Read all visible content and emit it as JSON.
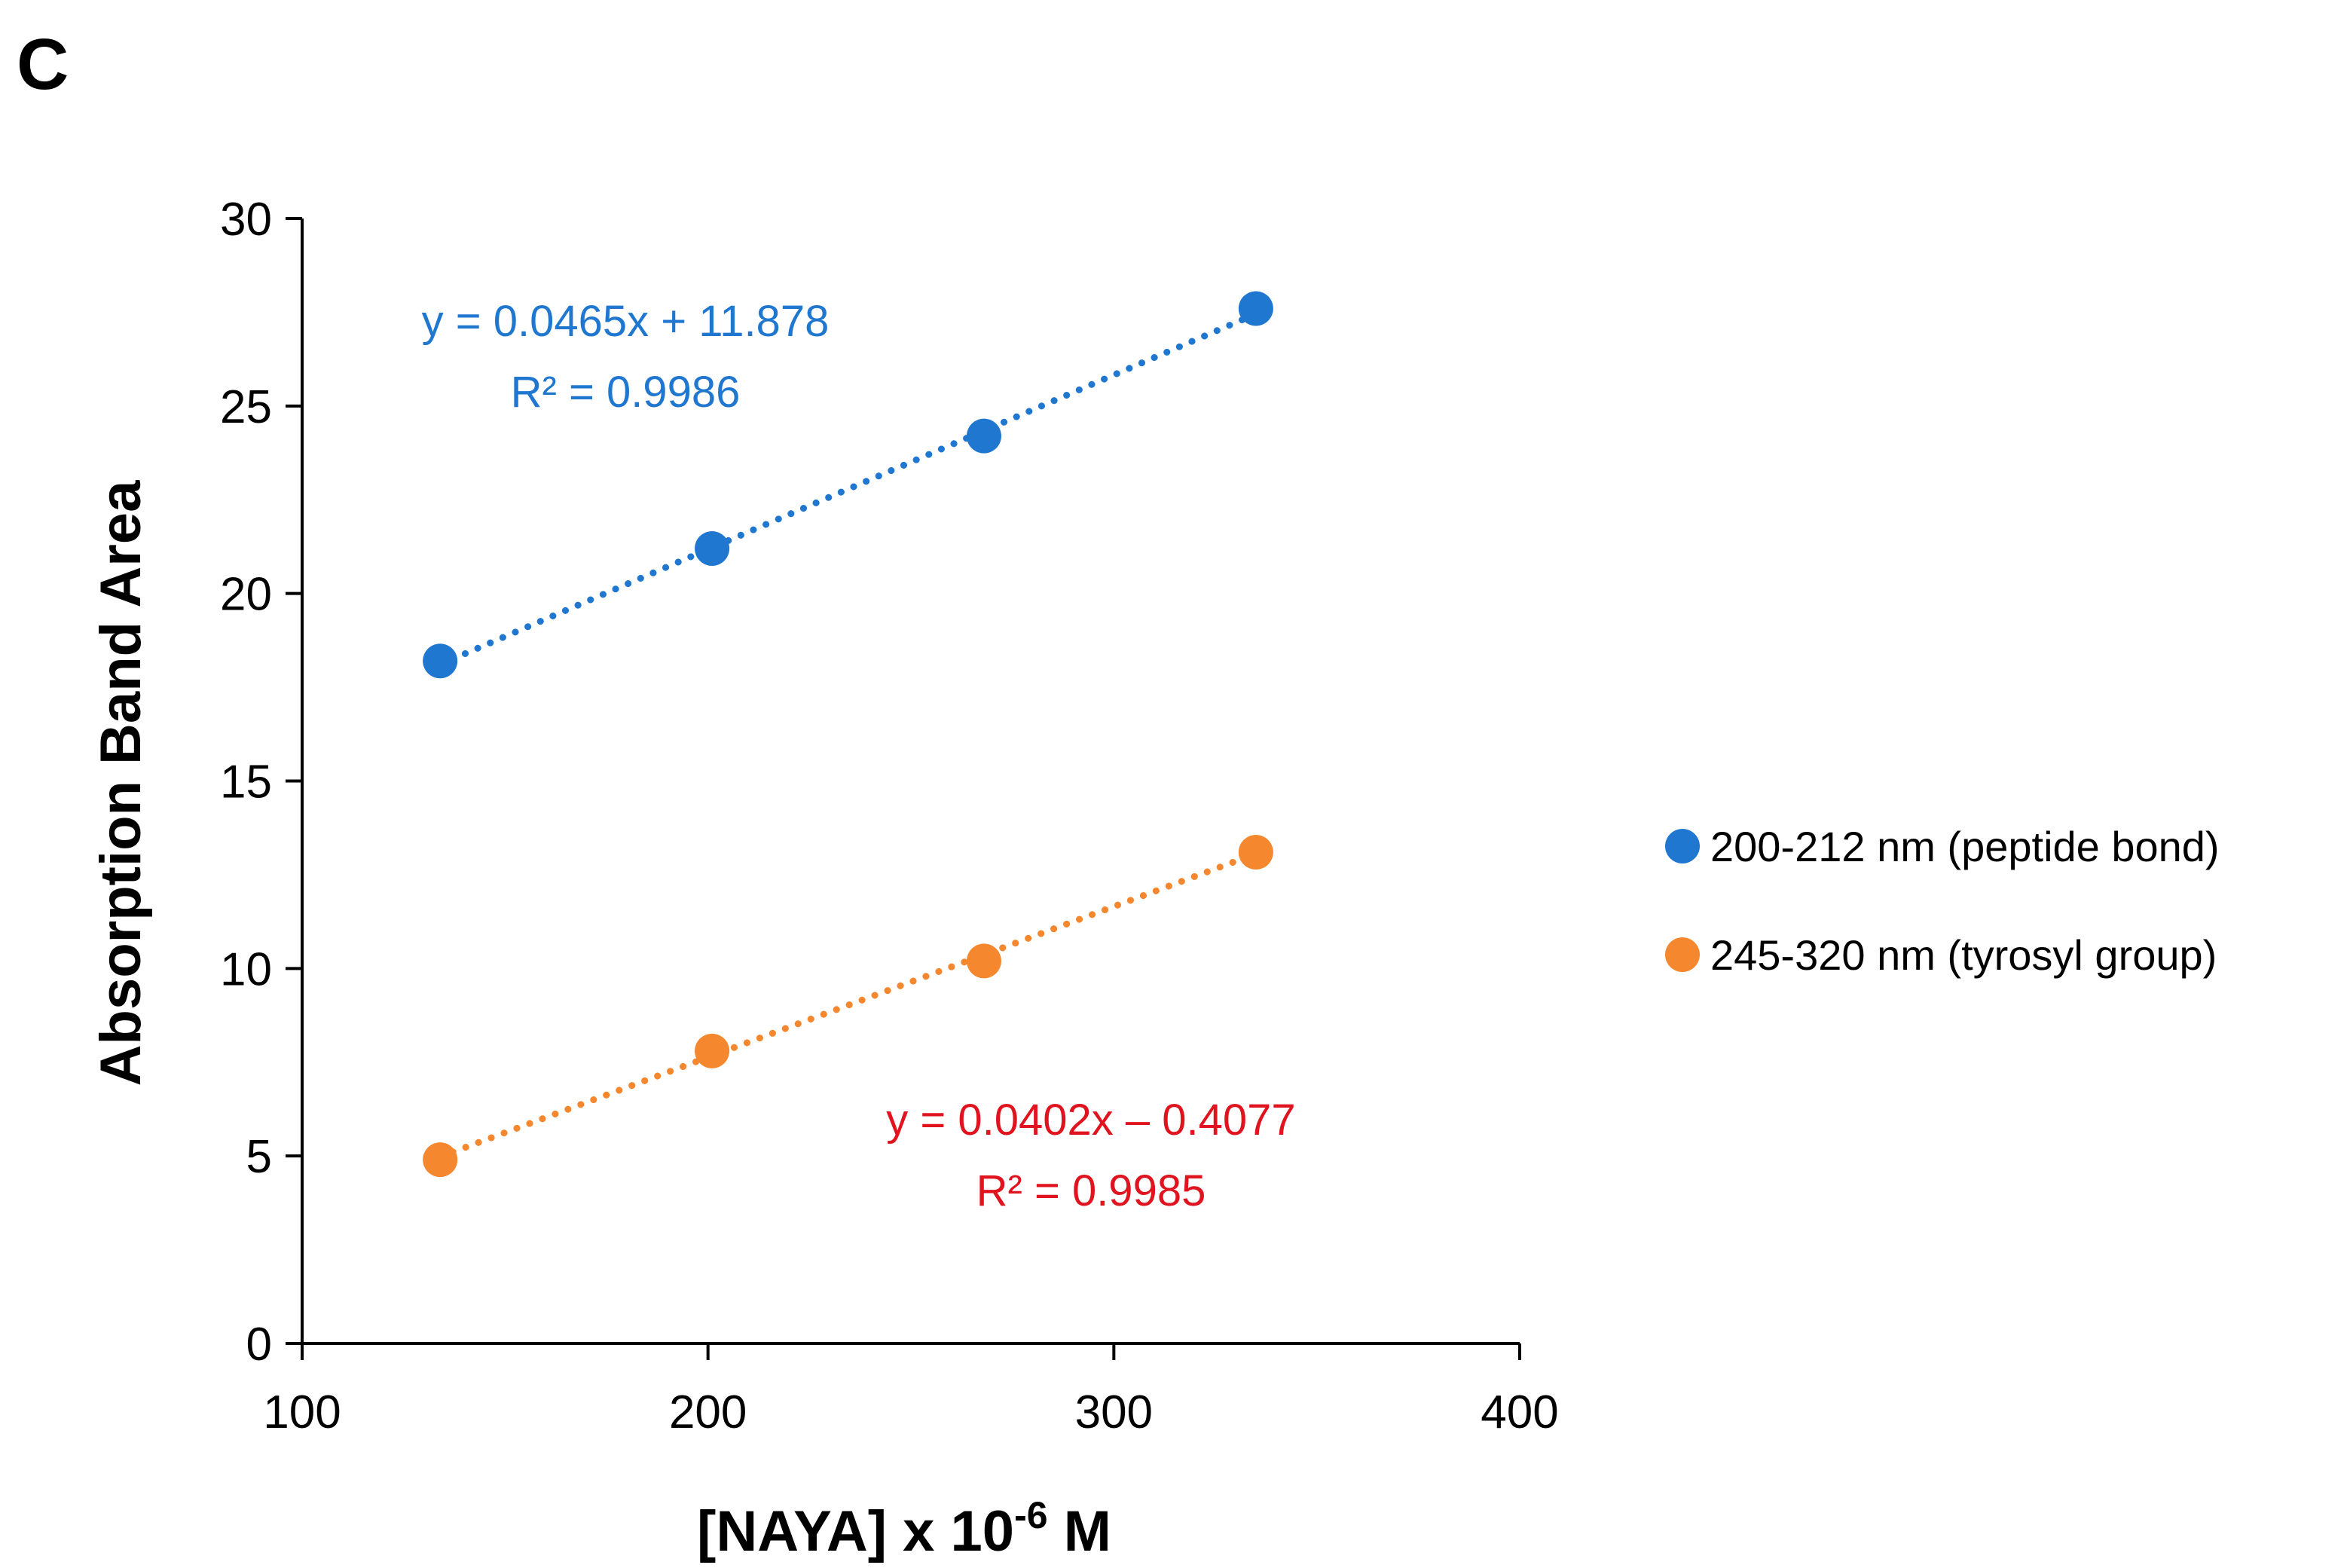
{
  "panel_label": "C",
  "chart_data": {
    "type": "scatter",
    "title": "",
    "xlabel": {
      "main": "[NAYA] x 10",
      "exponent": "-6",
      "unit": " M"
    },
    "ylabel": "Absorption Band Area",
    "xlim": [
      100,
      400
    ],
    "ylim": [
      0,
      30
    ],
    "xticks": [
      100,
      200,
      300,
      400
    ],
    "yticks": [
      0,
      5,
      10,
      15,
      20,
      25,
      30
    ],
    "grid": false,
    "legend_position": "right",
    "series": [
      {
        "name": "200-212 nm (peptide bond)",
        "color": "#1f77d0",
        "x": [
          134,
          201,
          268,
          335
        ],
        "y": [
          18.2,
          21.2,
          24.2,
          27.6
        ],
        "trendline": {
          "type": "linear",
          "slope": 0.0465,
          "intercept": 11.878,
          "style": "dotted"
        },
        "equation": "y = 0.0465x + 11.878",
        "r2": "R² = 0.9986",
        "annotation_color": "#1f77d0"
      },
      {
        "name": "245-320 nm (tyrosyl group)",
        "color": "#f5872e",
        "x": [
          134,
          201,
          268,
          335
        ],
        "y": [
          4.9,
          7.8,
          10.2,
          13.1
        ],
        "trendline": {
          "type": "linear",
          "slope": 0.0402,
          "intercept": -0.4077,
          "style": "dotted"
        },
        "equation": "y = 0.0402x – 0.4077",
        "r2": "R² = 0.9985",
        "annotation_color": "#e0141e"
      }
    ]
  }
}
